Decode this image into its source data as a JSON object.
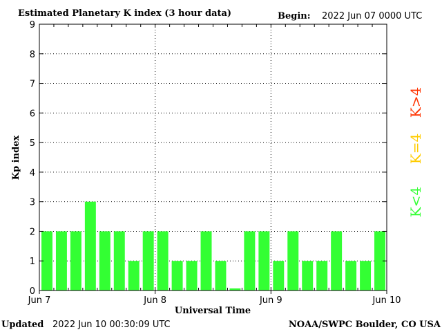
{
  "header": {
    "title": "Estimated Planetary K index (3 hour data)",
    "begin_label": "Begin:",
    "begin_value": "2022 Jun 07 0000 UTC"
  },
  "footer": {
    "updated_label": "Updated",
    "updated_value": "2022 Jun 10 00:30:09 UTC",
    "source": "NOAA/SWPC Boulder, CO USA"
  },
  "legend": {
    "low": {
      "text": "K<4",
      "color": "#33ff33"
    },
    "mid": {
      "text": "K=4",
      "color": "#ffcc00"
    },
    "high": {
      "text": "K>4",
      "color": "#ff3300"
    }
  },
  "chart_data": {
    "type": "bar",
    "xlabel": "Universal Time",
    "ylabel": "Kp index",
    "ylim": [
      0,
      9
    ],
    "yticks": [
      0,
      1,
      2,
      3,
      4,
      5,
      6,
      7,
      8,
      9
    ],
    "xticks": [
      "Jun 7",
      "Jun 8",
      "Jun 9",
      "Jun 10"
    ],
    "grid": true,
    "bar_color": "#33ff33",
    "values": [
      2,
      2,
      2,
      3,
      2,
      2,
      1,
      2,
      2,
      1,
      1,
      2,
      1,
      0.07,
      2,
      2,
      1,
      2,
      1,
      1,
      2,
      1,
      1,
      2
    ]
  }
}
